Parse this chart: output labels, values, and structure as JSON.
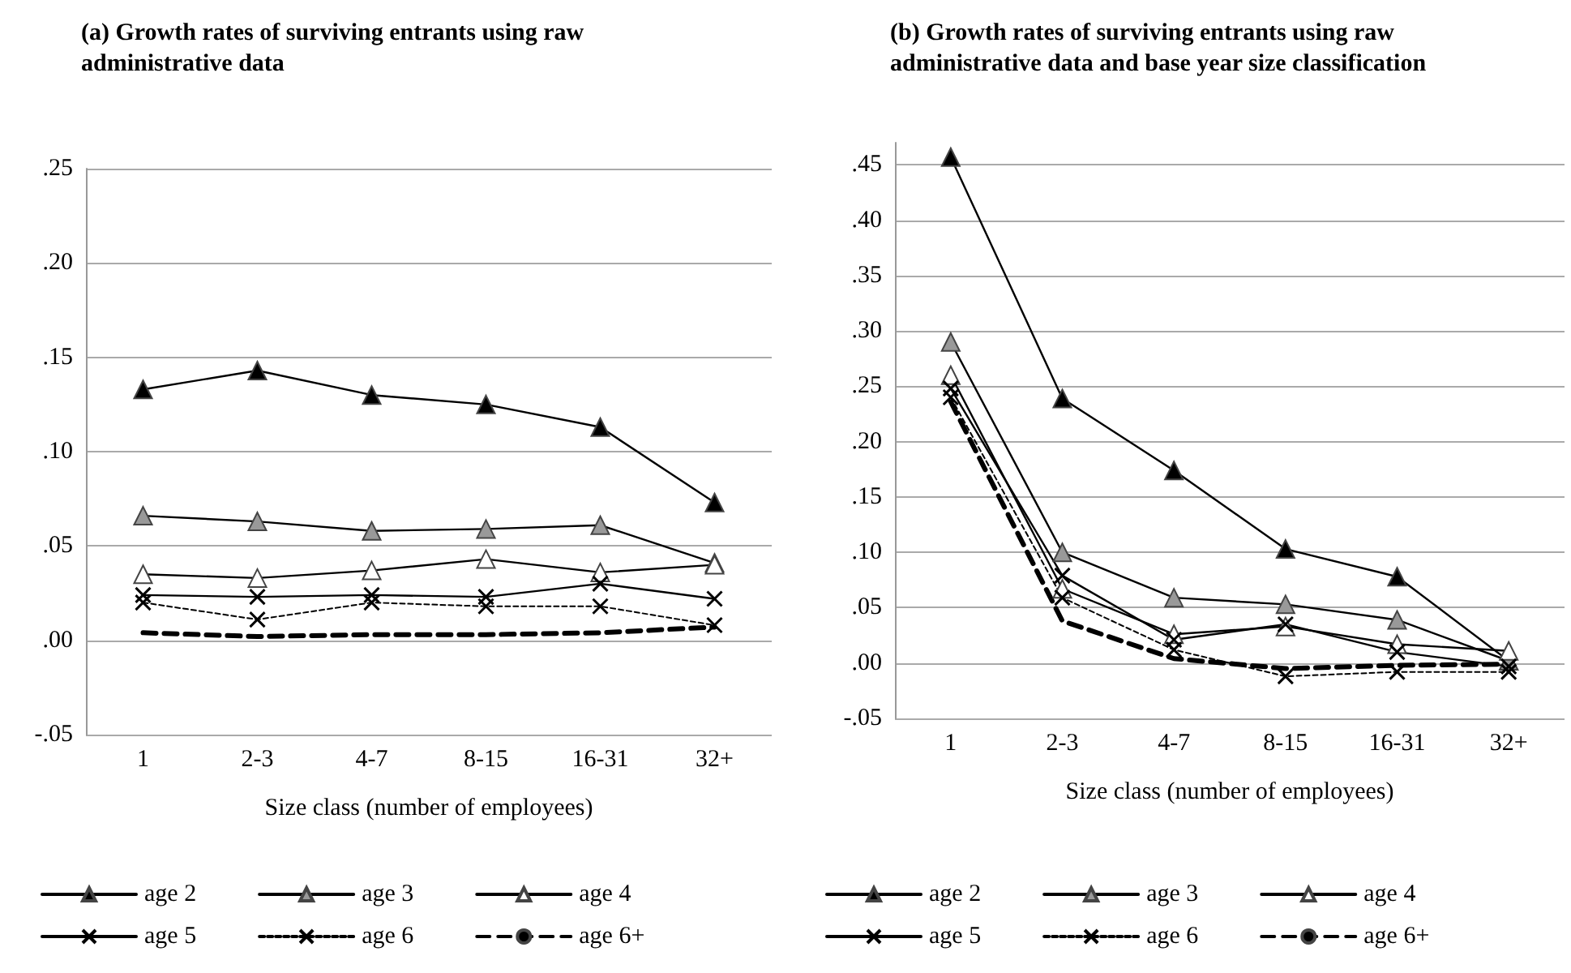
{
  "chart_data": [
    {
      "type": "line",
      "title": "(a) Growth rates of surviving entrants using raw administrative data",
      "xlabel": "Size class (number of employees)",
      "categories": [
        "1",
        "2-3",
        "4-7",
        "8-15",
        "16-31",
        "32+"
      ],
      "ylim": [
        -0.05,
        0.25
      ],
      "yticks": [
        {
          "value": -0.05,
          "label": "-.05"
        },
        {
          "value": 0,
          "label": ".00"
        },
        {
          "value": 0.05,
          "label": ".05"
        },
        {
          "value": 0.1,
          "label": ".10"
        },
        {
          "value": 0.15,
          "label": ".15"
        },
        {
          "value": 0.2,
          "label": ".20"
        },
        {
          "value": 0.25,
          "label": ".25"
        }
      ],
      "grid": "y",
      "legend": "bottom",
      "series": [
        {
          "name": "age 2",
          "color": "#000000",
          "marker": "triangle",
          "line_style": "solid",
          "values": [
            0.133,
            0.143,
            0.13,
            0.125,
            0.113,
            0.073
          ]
        },
        {
          "name": "age 3",
          "color": "#999999",
          "marker": "triangle",
          "line_style": "solid",
          "values": [
            0.066,
            0.063,
            0.058,
            0.059,
            0.061,
            0.041
          ]
        },
        {
          "name": "age 4",
          "color": "#ffffff",
          "marker": "triangle",
          "line_style": "solid",
          "values": [
            0.035,
            0.033,
            0.037,
            0.043,
            0.036,
            0.04
          ]
        },
        {
          "name": "age 5",
          "color": "#000000",
          "marker": "cross",
          "line_style": "solid",
          "values": [
            0.024,
            0.023,
            0.024,
            0.023,
            0.03,
            0.022
          ]
        },
        {
          "name": "age 6",
          "color": "#000000",
          "marker": "cross",
          "line_style": "dotted",
          "values": [
            0.02,
            0.011,
            0.02,
            0.018,
            0.018,
            0.008
          ]
        },
        {
          "name": "age 6+",
          "color": "#000000",
          "marker": "none",
          "line_style": "dashed",
          "values": [
            0.004,
            0.002,
            0.003,
            0.003,
            0.004,
            0.007
          ]
        }
      ]
    },
    {
      "type": "line",
      "title": "(b) Growth rates of surviving entrants using raw administrative data and base year size classification",
      "xlabel": "Size class (number of employees)",
      "categories": [
        "1",
        "2-3",
        "4-7",
        "8-15",
        "16-31",
        "32+"
      ],
      "ylim": [
        -0.05,
        0.47
      ],
      "yticks": [
        {
          "value": -0.05,
          "label": "-.05"
        },
        {
          "value": 0,
          "label": ".00"
        },
        {
          "value": 0.05,
          "label": ".05"
        },
        {
          "value": 0.1,
          "label": ".10"
        },
        {
          "value": 0.15,
          "label": ".15"
        },
        {
          "value": 0.2,
          "label": ".20"
        },
        {
          "value": 0.25,
          "label": ".25"
        },
        {
          "value": 0.3,
          "label": ".30"
        },
        {
          "value": 0.35,
          "label": ".35"
        },
        {
          "value": 0.4,
          "label": ".40"
        },
        {
          "value": 0.45,
          "label": ".45"
        }
      ],
      "grid": "y",
      "legend": "bottom",
      "series": [
        {
          "name": "age 2",
          "color": "#000000",
          "marker": "triangle",
          "line_style": "solid",
          "values": [
            0.457,
            0.239,
            0.174,
            0.103,
            0.078,
            0.002
          ]
        },
        {
          "name": "age 3",
          "color": "#999999",
          "marker": "triangle",
          "line_style": "solid",
          "values": [
            0.29,
            0.1,
            0.059,
            0.053,
            0.039,
            0.002
          ]
        },
        {
          "name": "age 4",
          "color": "#ffffff",
          "marker": "triangle",
          "line_style": "solid",
          "values": [
            0.26,
            0.067,
            0.026,
            0.033,
            0.017,
            0.011
          ]
        },
        {
          "name": "age 5",
          "color": "#000000",
          "marker": "cross",
          "line_style": "solid",
          "values": [
            0.248,
            0.079,
            0.021,
            0.035,
            0.01,
            -0.003
          ]
        },
        {
          "name": "age 6",
          "color": "#000000",
          "marker": "cross",
          "line_style": "dotted",
          "values": [
            0.24,
            0.059,
            0.012,
            -0.012,
            -0.008,
            -0.008
          ]
        },
        {
          "name": "age 6+",
          "color": "#000000",
          "marker": "none",
          "line_style": "dashed",
          "values": [
            0.236,
            0.038,
            0.004,
            -0.005,
            -0.002,
            -0.001
          ]
        }
      ]
    }
  ]
}
